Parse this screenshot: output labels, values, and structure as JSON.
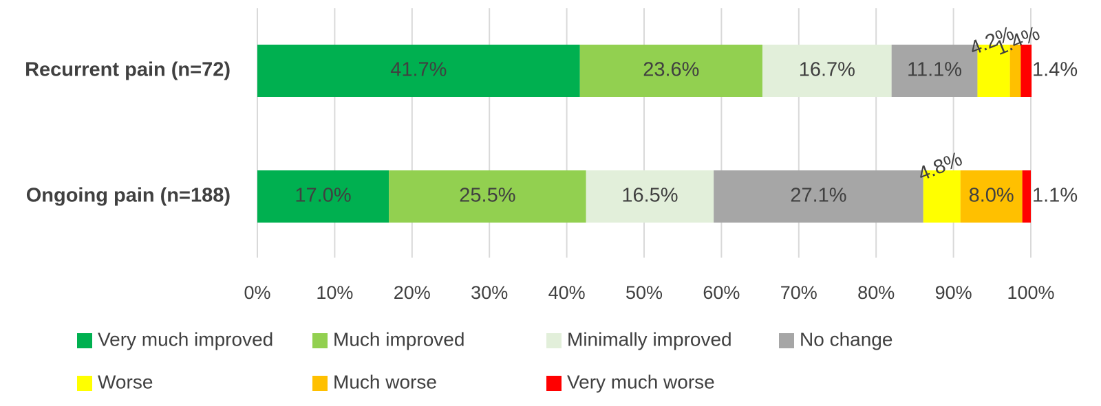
{
  "chart_data": {
    "type": "bar",
    "orientation": "horizontal",
    "stacked": "100%",
    "categories": [
      "Recurrent pain (n=72)",
      "Ongoing pain (n=188)"
    ],
    "series": [
      {
        "name": "Very much improved",
        "color": "#00b050",
        "values": [
          41.7,
          17.0
        ],
        "labels": [
          "41.7%",
          "17.0%"
        ]
      },
      {
        "name": "Much improved",
        "color": "#92d050",
        "values": [
          23.6,
          25.5
        ],
        "labels": [
          "23.6%",
          "25.5%"
        ]
      },
      {
        "name": "Minimally improved",
        "color": "#e2efda",
        "values": [
          16.7,
          16.5
        ],
        "labels": [
          "16.7%",
          "16.5%"
        ]
      },
      {
        "name": "No change",
        "color": "#a6a6a6",
        "values": [
          11.1,
          27.1
        ],
        "labels": [
          "11.1%",
          "27.1%"
        ]
      },
      {
        "name": "Worse",
        "color": "#ffff00",
        "values": [
          4.2,
          4.8
        ],
        "labels": [
          "4.2%",
          "4.8%"
        ]
      },
      {
        "name": "Much worse",
        "color": "#ffc000",
        "values": [
          1.4,
          8.0
        ],
        "labels": [
          "1.4%",
          "8.0%"
        ]
      },
      {
        "name": "Very much worse",
        "color": "#ff0000",
        "values": [
          1.4,
          1.1
        ],
        "labels": [
          "1.4%",
          "1.1%"
        ]
      }
    ],
    "xlim": [
      0,
      100
    ],
    "xticks": [
      "0%",
      "10%",
      "20%",
      "30%",
      "40%",
      "50%",
      "60%",
      "70%",
      "80%",
      "90%",
      "100%"
    ],
    "grid": "vertical",
    "legend_position": "bottom"
  }
}
